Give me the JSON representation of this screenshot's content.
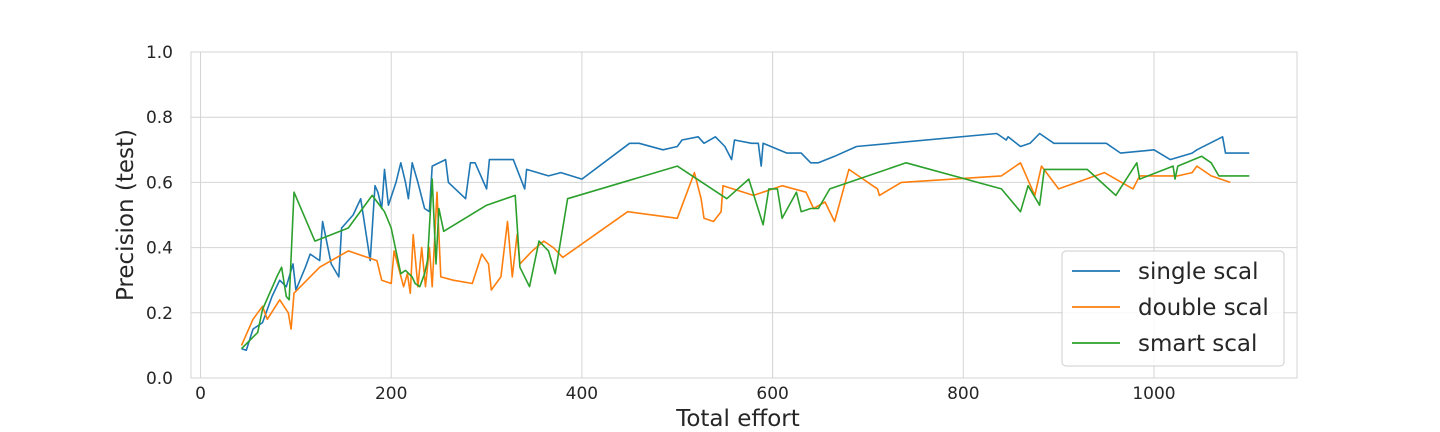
{
  "chart_data": {
    "type": "line",
    "title": "",
    "xlabel": "Total effort",
    "ylabel": "Precision (test)",
    "xlim": [
      -10,
      1150
    ],
    "ylim": [
      0.0,
      1.0
    ],
    "xticks": [
      0,
      200,
      400,
      600,
      800,
      1000
    ],
    "yticks": [
      0.0,
      0.2,
      0.4,
      0.6,
      0.8,
      1.0
    ],
    "xtick_labels": [
      "0",
      "200",
      "400",
      "600",
      "800",
      "1000"
    ],
    "ytick_labels": [
      "0.0",
      "0.2",
      "0.4",
      "0.6",
      "0.8",
      "1.0"
    ],
    "grid": true,
    "legend_position": "lower-right",
    "series": [
      {
        "name": "single scal",
        "color": "#1f77b4",
        "points": [
          [
            43,
            0.09
          ],
          [
            48,
            0.085
          ],
          [
            55,
            0.15
          ],
          [
            65,
            0.17
          ],
          [
            75,
            0.25
          ],
          [
            83,
            0.3
          ],
          [
            90,
            0.28
          ],
          [
            97,
            0.35
          ],
          [
            100,
            0.27
          ],
          [
            110,
            0.34
          ],
          [
            115,
            0.38
          ],
          [
            125,
            0.36
          ],
          [
            128,
            0.48
          ],
          [
            137,
            0.35
          ],
          [
            145,
            0.31
          ],
          [
            148,
            0.46
          ],
          [
            160,
            0.5
          ],
          [
            168,
            0.55
          ],
          [
            178,
            0.36
          ],
          [
            183,
            0.59
          ],
          [
            186,
            0.57
          ],
          [
            190,
            0.52
          ],
          [
            193,
            0.64
          ],
          [
            197,
            0.53
          ],
          [
            205,
            0.6
          ],
          [
            210,
            0.66
          ],
          [
            215,
            0.6
          ],
          [
            218,
            0.55
          ],
          [
            222,
            0.66
          ],
          [
            228,
            0.6
          ],
          [
            235,
            0.52
          ],
          [
            240,
            0.51
          ],
          [
            243,
            0.65
          ],
          [
            257,
            0.67
          ],
          [
            260,
            0.6
          ],
          [
            278,
            0.55
          ],
          [
            283,
            0.66
          ],
          [
            288,
            0.66
          ],
          [
            300,
            0.58
          ],
          [
            303,
            0.67
          ],
          [
            305,
            0.67
          ],
          [
            328,
            0.67
          ],
          [
            340,
            0.58
          ],
          [
            342,
            0.64
          ],
          [
            365,
            0.62
          ],
          [
            378,
            0.63
          ],
          [
            400,
            0.61
          ],
          [
            450,
            0.72
          ],
          [
            460,
            0.72
          ],
          [
            485,
            0.7
          ],
          [
            500,
            0.71
          ],
          [
            505,
            0.73
          ],
          [
            522,
            0.74
          ],
          [
            528,
            0.72
          ],
          [
            540,
            0.74
          ],
          [
            550,
            0.71
          ],
          [
            557,
            0.67
          ],
          [
            560,
            0.73
          ],
          [
            578,
            0.72
          ],
          [
            585,
            0.72
          ],
          [
            588,
            0.65
          ],
          [
            590,
            0.72
          ],
          [
            615,
            0.69
          ],
          [
            630,
            0.69
          ],
          [
            640,
            0.66
          ],
          [
            648,
            0.66
          ],
          [
            665,
            0.68
          ],
          [
            688,
            0.71
          ],
          [
            835,
            0.75
          ],
          [
            845,
            0.73
          ],
          [
            847,
            0.74
          ],
          [
            860,
            0.71
          ],
          [
            870,
            0.72
          ],
          [
            880,
            0.75
          ],
          [
            895,
            0.72
          ],
          [
            950,
            0.72
          ],
          [
            965,
            0.69
          ],
          [
            1000,
            0.7
          ],
          [
            1017,
            0.67
          ],
          [
            1040,
            0.69
          ],
          [
            1045,
            0.7
          ],
          [
            1072,
            0.74
          ],
          [
            1075,
            0.69
          ],
          [
            1100,
            0.69
          ]
        ]
      },
      {
        "name": "double scal",
        "color": "#ff7f0e",
        "points": [
          [
            43,
            0.1
          ],
          [
            55,
            0.18
          ],
          [
            65,
            0.22
          ],
          [
            70,
            0.18
          ],
          [
            83,
            0.24
          ],
          [
            92,
            0.2
          ],
          [
            95,
            0.15
          ],
          [
            98,
            0.26
          ],
          [
            125,
            0.34
          ],
          [
            155,
            0.39
          ],
          [
            185,
            0.36
          ],
          [
            190,
            0.3
          ],
          [
            200,
            0.29
          ],
          [
            203,
            0.39
          ],
          [
            213,
            0.28
          ],
          [
            217,
            0.32
          ],
          [
            220,
            0.26
          ],
          [
            223,
            0.44
          ],
          [
            228,
            0.28
          ],
          [
            232,
            0.4
          ],
          [
            236,
            0.28
          ],
          [
            240,
            0.4
          ],
          [
            243,
            0.28
          ],
          [
            248,
            0.57
          ],
          [
            252,
            0.31
          ],
          [
            265,
            0.3
          ],
          [
            285,
            0.29
          ],
          [
            295,
            0.38
          ],
          [
            302,
            0.35
          ],
          [
            305,
            0.27
          ],
          [
            315,
            0.31
          ],
          [
            322,
            0.48
          ],
          [
            327,
            0.31
          ],
          [
            332,
            0.44
          ],
          [
            335,
            0.35
          ],
          [
            348,
            0.39
          ],
          [
            360,
            0.42
          ],
          [
            370,
            0.4
          ],
          [
            380,
            0.37
          ],
          [
            448,
            0.51
          ],
          [
            500,
            0.49
          ],
          [
            518,
            0.63
          ],
          [
            525,
            0.55
          ],
          [
            528,
            0.49
          ],
          [
            538,
            0.48
          ],
          [
            546,
            0.51
          ],
          [
            548,
            0.59
          ],
          [
            580,
            0.56
          ],
          [
            610,
            0.59
          ],
          [
            635,
            0.57
          ],
          [
            643,
            0.52
          ],
          [
            655,
            0.54
          ],
          [
            665,
            0.48
          ],
          [
            680,
            0.64
          ],
          [
            705,
            0.59
          ],
          [
            710,
            0.58
          ],
          [
            712,
            0.56
          ],
          [
            735,
            0.6
          ],
          [
            840,
            0.62
          ],
          [
            860,
            0.66
          ],
          [
            875,
            0.56
          ],
          [
            882,
            0.65
          ],
          [
            900,
            0.58
          ],
          [
            948,
            0.63
          ],
          [
            978,
            0.58
          ],
          [
            985,
            0.62
          ],
          [
            1025,
            0.62
          ],
          [
            1040,
            0.63
          ],
          [
            1045,
            0.65
          ],
          [
            1060,
            0.62
          ],
          [
            1080,
            0.6
          ]
        ]
      },
      {
        "name": "smart scal",
        "color": "#2ca02c",
        "points": [
          [
            43,
            0.09
          ],
          [
            60,
            0.14
          ],
          [
            65,
            0.21
          ],
          [
            80,
            0.31
          ],
          [
            85,
            0.34
          ],
          [
            90,
            0.25
          ],
          [
            93,
            0.24
          ],
          [
            98,
            0.57
          ],
          [
            120,
            0.42
          ],
          [
            155,
            0.46
          ],
          [
            180,
            0.56
          ],
          [
            193,
            0.51
          ],
          [
            200,
            0.46
          ],
          [
            210,
            0.32
          ],
          [
            215,
            0.33
          ],
          [
            222,
            0.31
          ],
          [
            225,
            0.29
          ],
          [
            230,
            0.28
          ],
          [
            235,
            0.32
          ],
          [
            238,
            0.36
          ],
          [
            243,
            0.61
          ],
          [
            247,
            0.35
          ],
          [
            250,
            0.52
          ],
          [
            255,
            0.45
          ],
          [
            300,
            0.53
          ],
          [
            330,
            0.56
          ],
          [
            335,
            0.34
          ],
          [
            345,
            0.28
          ],
          [
            355,
            0.42
          ],
          [
            365,
            0.39
          ],
          [
            372,
            0.32
          ],
          [
            385,
            0.55
          ],
          [
            500,
            0.65
          ],
          [
            552,
            0.55
          ],
          [
            575,
            0.61
          ],
          [
            590,
            0.47
          ],
          [
            596,
            0.58
          ],
          [
            605,
            0.58
          ],
          [
            610,
            0.49
          ],
          [
            625,
            0.57
          ],
          [
            630,
            0.51
          ],
          [
            640,
            0.52
          ],
          [
            648,
            0.52
          ],
          [
            660,
            0.58
          ],
          [
            740,
            0.66
          ],
          [
            840,
            0.58
          ],
          [
            860,
            0.51
          ],
          [
            868,
            0.59
          ],
          [
            880,
            0.53
          ],
          [
            885,
            0.64
          ],
          [
            930,
            0.64
          ],
          [
            960,
            0.56
          ],
          [
            982,
            0.66
          ],
          [
            985,
            0.61
          ],
          [
            1020,
            0.65
          ],
          [
            1022,
            0.61
          ],
          [
            1025,
            0.65
          ],
          [
            1050,
            0.68
          ],
          [
            1060,
            0.66
          ],
          [
            1068,
            0.62
          ],
          [
            1100,
            0.62
          ]
        ]
      }
    ]
  }
}
